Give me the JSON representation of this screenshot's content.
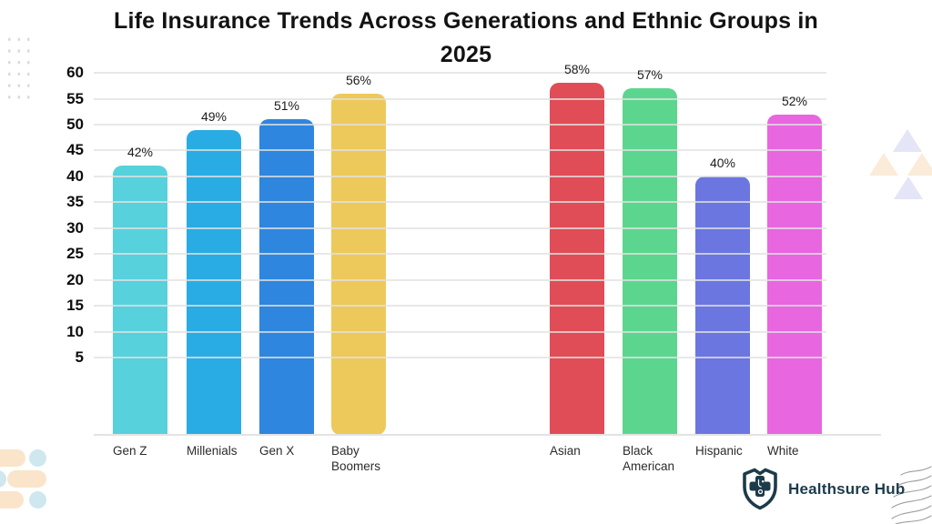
{
  "header": {
    "title_lines": [
      "Life Insurance Trends Across Generations and Ethnic Groups in",
      "2025"
    ]
  },
  "chart_data": {
    "type": "bar",
    "title": "Life Insurance Trends Across Generations and Ethnic Groups in 2025",
    "value_suffix": "%",
    "xlabel": "",
    "ylabel": "",
    "ylim": [
      0,
      60
    ],
    "y_ticks": [
      60,
      55,
      50,
      45,
      40,
      35,
      30,
      25,
      20,
      15,
      10,
      5
    ],
    "grid": true,
    "legend": "none",
    "groups": [
      {
        "name": "generations",
        "bars": [
          {
            "label": "Gen Z",
            "value": 42,
            "color": "#57d1dc"
          },
          {
            "label": "Millenials",
            "value": 49,
            "color": "#29ace3"
          },
          {
            "label": "Gen X",
            "value": 51,
            "color": "#2e86de"
          },
          {
            "label": "Baby Boomers",
            "value": 56,
            "color": "#edc95b",
            "rounded_bottom": true
          }
        ]
      },
      {
        "name": "ethnic_groups",
        "bars": [
          {
            "label": "Asian",
            "value": 58,
            "color": "#e04d56"
          },
          {
            "label": "Black American",
            "value": 57,
            "color": "#5cd68e"
          },
          {
            "label": "Hispanic",
            "value": 40,
            "color": "#6b76e1"
          },
          {
            "label": "White",
            "value": 52,
            "color": "#e866df"
          }
        ]
      }
    ]
  },
  "logo": {
    "text": "Healthsure Hub",
    "color": "#1c3b4b",
    "icon": "shield-medical-cross-icon"
  },
  "decor": {
    "top_left": "dot-grid-pattern",
    "bottom_left": "peach-pills-and-blue-circles",
    "right": "triangle-mosaic",
    "bottom_right": "wavy-lines",
    "colors": {
      "peach": "#fae5cb",
      "light_blue": "#cfe7ef",
      "lavender": "#e4e5f6",
      "wave_gray": "#9e9e9e"
    }
  }
}
